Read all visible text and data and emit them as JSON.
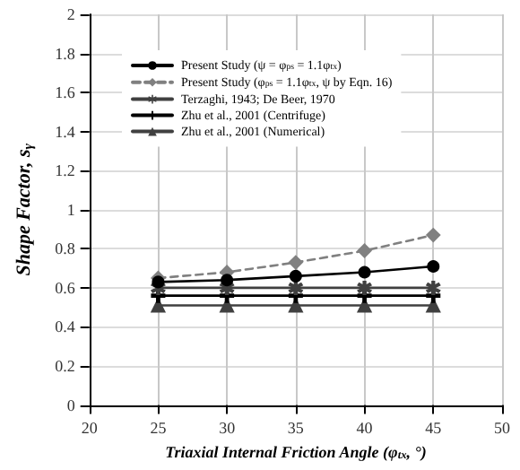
{
  "chart_data": {
    "type": "line",
    "xlabel": "Triaxial Internal Friction Angle (φ$_{tx}$, °)",
    "ylabel": "Shape Factor, s$_{γ}$",
    "x": [
      25,
      30,
      35,
      40,
      45
    ],
    "xlim": [
      20,
      50
    ],
    "xticks": [
      20,
      25,
      30,
      35,
      40,
      45,
      50
    ],
    "ylim": [
      0,
      2
    ],
    "yticks": [
      0,
      0.2,
      0.4,
      0.6,
      0.8,
      1,
      1.2,
      1.4,
      1.6,
      1.8,
      2
    ],
    "grid": true,
    "legend": "top",
    "series": [
      {
        "name": "Present Study (ψ = φ$_{ps}$ = 1.1φ$_{tx}$)",
        "color": "#000000",
        "marker": "circle",
        "line_style": "solid",
        "values": [
          0.63,
          0.64,
          0.66,
          0.68,
          0.71
        ]
      },
      {
        "name": "Present Study (φ$_{ps}$ = 1.1φ$_{tx}$, ψ by Eqn. 16)",
        "color": "#808080",
        "marker": "diamond",
        "line_style": "dashed",
        "values": [
          0.65,
          0.68,
          0.73,
          0.79,
          0.87
        ]
      },
      {
        "name": "Terzaghi, 1943; De Beer, 1970",
        "color": "#404040",
        "marker": "star",
        "line_style": "solid",
        "values": [
          0.6,
          0.6,
          0.6,
          0.6,
          0.6
        ]
      },
      {
        "name": "Zhu et al., 2001 (Centrifuge)",
        "color": "#000000",
        "marker": "cross",
        "line_style": "solid",
        "values": [
          0.56,
          0.56,
          0.56,
          0.56,
          0.56
        ]
      },
      {
        "name": "Zhu et al., 2001 (Numerical)",
        "color": "#404040",
        "marker": "triangle",
        "line_style": "solid",
        "values": [
          0.51,
          0.51,
          0.51,
          0.51,
          0.51
        ]
      }
    ]
  }
}
